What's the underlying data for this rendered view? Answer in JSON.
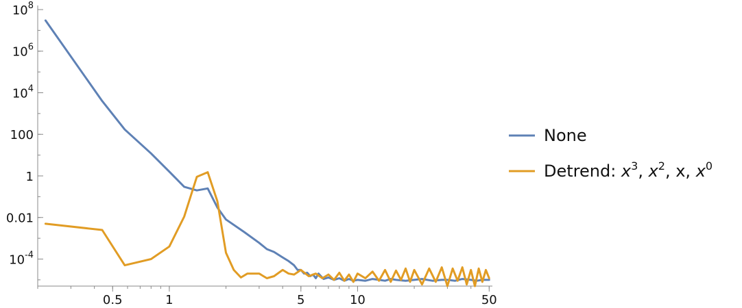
{
  "chart_data": {
    "type": "line",
    "title": "",
    "xlabel": "",
    "ylabel": "",
    "x_scale": "log",
    "y_scale": "log",
    "xlim": [
      0.2,
      52
    ],
    "ylim": [
      5e-06,
      100000000
    ],
    "x_ticks": [
      {
        "value": 0.5,
        "label": "0.5"
      },
      {
        "value": 1,
        "label": "1"
      },
      {
        "value": 5,
        "label": "5"
      },
      {
        "value": 10,
        "label": "10"
      },
      {
        "value": 50,
        "label": "50"
      }
    ],
    "y_ticks": [
      {
        "value": 100000000,
        "base": "10",
        "exp": "8"
      },
      {
        "value": 1000000,
        "base": "10",
        "exp": "6"
      },
      {
        "value": 10000,
        "base": "10",
        "exp": "4"
      },
      {
        "value": 100,
        "base": "100",
        "exp": ""
      },
      {
        "value": 1,
        "base": "1",
        "exp": ""
      },
      {
        "value": 0.01,
        "base": "0.01",
        "exp": ""
      },
      {
        "value": 0.0001,
        "base": "10",
        "exp": "-4"
      }
    ],
    "grid": false,
    "legend_position": "right",
    "series": [
      {
        "name": "None",
        "color": "#5e81b5",
        "x": [
          0.22,
          0.44,
          0.58,
          0.8,
          1.0,
          1.2,
          1.4,
          1.6,
          1.8,
          2.0,
          2.5,
          3.0,
          3.3,
          3.6,
          4.0,
          4.3,
          4.6,
          4.8,
          5.0,
          5.2,
          5.4,
          5.6,
          5.8,
          6.0,
          6.2,
          6.6,
          7.0,
          7.5,
          8.0,
          8.5,
          9.0,
          9.5,
          10,
          11,
          12,
          13,
          14,
          15,
          16,
          18,
          20,
          22,
          25,
          28,
          30,
          33,
          36,
          40,
          43,
          46,
          50
        ],
        "y": [
          30000000,
          4000,
          170,
          12,
          1.6,
          0.3,
          0.2,
          0.25,
          0.03,
          0.008,
          0.002,
          0.0006,
          0.0003,
          0.00022,
          0.00012,
          8e-05,
          5e-05,
          3e-05,
          3e-05,
          2e-05,
          2.2e-05,
          1.5e-05,
          1.8e-05,
          1.2e-05,
          2e-05,
          1.1e-05,
          1.3e-05,
          1e-05,
          1.2e-05,
          9e-06,
          1.1e-05,
          9e-06,
          1e-05,
          9e-06,
          1.1e-05,
          1e-05,
          9e-06,
          1.1e-05,
          1e-05,
          9e-06,
          1e-05,
          1.1e-05,
          9e-06,
          1e-05,
          1e-05,
          9e-06,
          1.1e-05,
          1e-05,
          9e-06,
          1e-05,
          1e-05
        ]
      },
      {
        "name": "Detrend: x3, x2, x, x0",
        "legend_parts": [
          "Detrend: ",
          "x",
          "3",
          ", ",
          "x",
          "2",
          ", x, ",
          "x",
          "0"
        ],
        "color": "#e19c24",
        "x": [
          0.22,
          0.44,
          0.58,
          0.8,
          1.0,
          1.2,
          1.4,
          1.6,
          1.8,
          2.0,
          2.2,
          2.4,
          2.6,
          3.0,
          3.3,
          3.6,
          4.0,
          4.3,
          4.6,
          5.0,
          5.5,
          6.0,
          6.5,
          7.0,
          7.5,
          8.0,
          8.5,
          9.0,
          9.5,
          10,
          11,
          12,
          13,
          14,
          15,
          16,
          17,
          18,
          19,
          20,
          22,
          24,
          26,
          28,
          30,
          32,
          34,
          36,
          38,
          40,
          42,
          44,
          46,
          48,
          50
        ],
        "y": [
          0.005,
          0.0025,
          5e-05,
          0.0001,
          0.0004,
          0.011,
          0.9,
          1.5,
          0.06,
          0.0002,
          3e-05,
          1.3e-05,
          2e-05,
          2e-05,
          1.2e-05,
          1.5e-05,
          3e-05,
          2e-05,
          1.8e-05,
          3e-05,
          1.5e-05,
          2e-05,
          1.2e-05,
          1.8e-05,
          1e-05,
          2.2e-05,
          9e-06,
          1.8e-05,
          8e-06,
          2e-05,
          1.2e-05,
          2.5e-05,
          9e-06,
          3e-05,
          8e-06,
          2.8e-05,
          1e-05,
          3.5e-05,
          8e-06,
          3e-05,
          6e-06,
          3.5e-05,
          8e-06,
          4e-05,
          5e-06,
          3.5e-05,
          9e-06,
          4e-05,
          6e-06,
          3e-05,
          5e-06,
          3.5e-05,
          8e-06,
          3e-05,
          1.2e-05
        ]
      }
    ]
  }
}
